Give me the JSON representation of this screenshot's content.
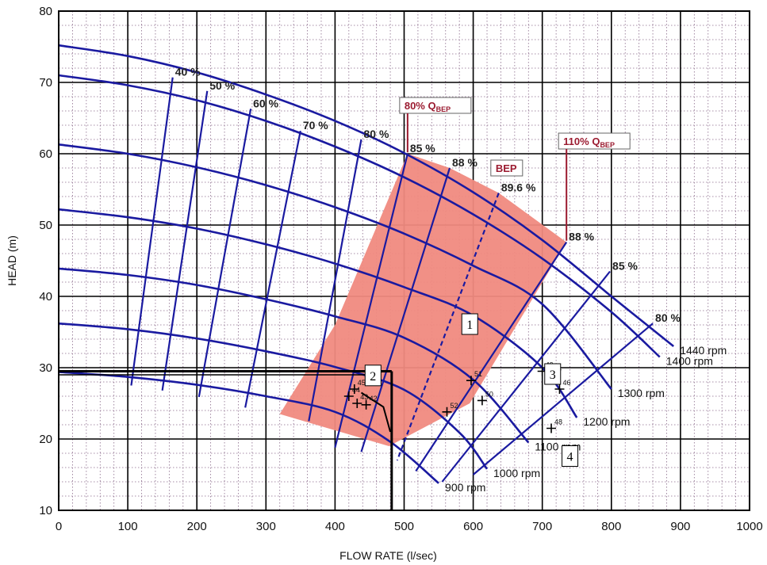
{
  "chart_data": {
    "type": "line",
    "title": "",
    "xlabel": "FLOW RATE (l/sec)",
    "ylabel": "HEAD (m)",
    "xlim": [
      0,
      1000
    ],
    "ylim": [
      10,
      80
    ],
    "x_ticks": [
      0,
      100,
      200,
      300,
      400,
      500,
      600,
      700,
      800,
      900,
      1000
    ],
    "y_ticks": [
      10,
      20,
      30,
      40,
      50,
      60,
      70,
      80
    ],
    "grid": true,
    "colors": {
      "curves": "#1a1aa0",
      "region": "#f08a80",
      "callout": "#9b1b30",
      "grid_major": "#000000",
      "grid_minor": "#8a6a8a"
    },
    "head_curves": [
      {
        "label": "1440 rpm",
        "x": [
          0,
          100,
          200,
          300,
          400,
          500,
          600,
          700,
          800,
          890
        ],
        "y": [
          75.2,
          73.7,
          71.4,
          68.3,
          64.6,
          60.1,
          54.6,
          47.9,
          40.0,
          33.0
        ]
      },
      {
        "label": "1400 rpm",
        "x": [
          0,
          100,
          200,
          300,
          400,
          500,
          600,
          700,
          800,
          870
        ],
        "y": [
          71.0,
          69.6,
          67.5,
          64.6,
          61.0,
          56.7,
          51.5,
          45.3,
          37.8,
          31.5
        ]
      },
      {
        "label": "1300 rpm",
        "x": [
          0,
          100,
          200,
          300,
          400,
          500,
          600,
          700,
          800
        ],
        "y": [
          61.3,
          60.0,
          58.1,
          55.6,
          52.5,
          48.8,
          44.3,
          38.9,
          27.0
        ]
      },
      {
        "label": "1200 rpm",
        "x": [
          0,
          100,
          200,
          300,
          400,
          500,
          600,
          700,
          750
        ],
        "y": [
          52.2,
          51.1,
          49.5,
          47.3,
          44.6,
          41.3,
          37.3,
          30.0,
          23.0
        ]
      },
      {
        "label": "1100 rpm",
        "x": [
          0,
          100,
          200,
          300,
          400,
          500,
          600,
          680
        ],
        "y": [
          43.9,
          43.0,
          41.6,
          39.6,
          37.2,
          34.2,
          28.3,
          19.5
        ]
      },
      {
        "label": "1000 rpm",
        "x": [
          0,
          100,
          200,
          300,
          400,
          500,
          580,
          620
        ],
        "y": [
          36.2,
          35.4,
          34.1,
          32.3,
          30.1,
          26.9,
          20.9,
          15.8
        ]
      },
      {
        "label": "900 rpm",
        "x": [
          0,
          100,
          200,
          300,
          400,
          480,
          550
        ],
        "y": [
          29.4,
          28.7,
          27.6,
          26.0,
          23.8,
          19.6,
          13.8
        ]
      }
    ],
    "efficiency_lines": [
      {
        "label": "40 %",
        "x": [
          165,
          105
        ],
        "y": [
          70.7,
          27.5
        ]
      },
      {
        "label": "50 %",
        "x": [
          215,
          150
        ],
        "y": [
          68.8,
          26.8
        ]
      },
      {
        "label": "60 %",
        "x": [
          278,
          203
        ],
        "y": [
          66.3,
          25.9
        ]
      },
      {
        "label": "70 %",
        "x": [
          350,
          270
        ],
        "y": [
          63.2,
          24.4
        ]
      },
      {
        "label": "80 %",
        "x": [
          438,
          362
        ],
        "y": [
          62.0,
          22.5
        ]
      },
      {
        "label": "85 %",
        "x": [
          505,
          400
        ],
        "y": [
          60.0,
          18.8
        ]
      },
      {
        "label": "88 %",
        "x": [
          566,
          438
        ],
        "y": [
          58.0,
          18.2
        ]
      },
      {
        "label": "89.6 %",
        "x": [
          637,
          490
        ],
        "y": [
          54.5,
          17.0
        ]
      },
      {
        "label": "88 %",
        "x": [
          735,
          517
        ],
        "y": [
          47.6,
          15.5
        ]
      },
      {
        "label": "85 %",
        "x": [
          798,
          555
        ],
        "y": [
          43.5,
          14.0
        ]
      },
      {
        "label": "80 %",
        "x": [
          860,
          600
        ],
        "y": [
          36.2,
          15.0
        ]
      }
    ],
    "shaded_region": [
      [
        505,
        60.0
      ],
      [
        566,
        58.0
      ],
      [
        637,
        54.5
      ],
      [
        735,
        47.6
      ],
      [
        595,
        25.0
      ],
      [
        478,
        19.0
      ],
      [
        320,
        23.5
      ],
      [
        400,
        36.0
      ]
    ],
    "operating_points": [
      {
        "label": "51",
        "x": 597,
        "y": 28.2
      },
      {
        "label": "50",
        "x": 613,
        "y": 25.4
      },
      {
        "label": "52",
        "x": 562,
        "y": 23.8
      },
      {
        "label": "48",
        "x": 713,
        "y": 21.5
      },
      {
        "label": "49",
        "x": 700,
        "y": 29.5
      },
      {
        "label": "47",
        "x": 712,
        "y": 28.5
      },
      {
        "label": "46",
        "x": 725,
        "y": 27.0
      },
      {
        "label": "45",
        "x": 428,
        "y": 27.0
      },
      {
        "label": "44",
        "x": 420,
        "y": 26.0
      },
      {
        "label": "43",
        "x": 432,
        "y": 25.0
      },
      {
        "label": "42",
        "x": 445,
        "y": 24.8
      }
    ],
    "callouts": {
      "q80": {
        "text": "80% Q",
        "subscript": "BEP",
        "x": 505
      },
      "bep": {
        "text": "BEP",
        "x": 637
      },
      "q110": {
        "text": "110% Q",
        "subscript": "BEP",
        "x": 735
      }
    },
    "region_markers": [
      "1",
      "2",
      "3",
      "4"
    ],
    "system_point": {
      "x": 480,
      "y": 29.5
    }
  }
}
